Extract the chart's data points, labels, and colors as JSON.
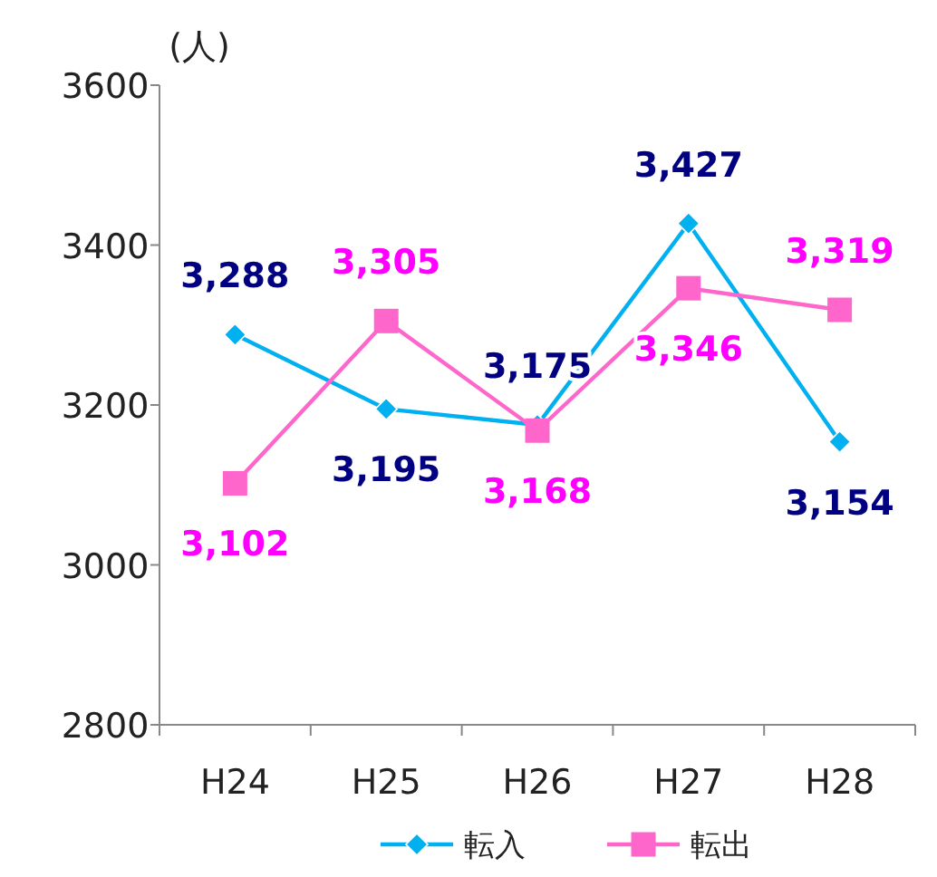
{
  "chart_data": {
    "type": "line",
    "ylabel": "(人)",
    "categories": [
      "H24",
      "H25",
      "H26",
      "H27",
      "H28"
    ],
    "series": [
      {
        "name": "転入",
        "color": "#00b0f0",
        "marker": "diamond",
        "values": [
          3288,
          3195,
          3175,
          3427,
          3154
        ],
        "value_labels": [
          "3,288",
          "3,195",
          "3,175",
          "3,427",
          "3,154"
        ]
      },
      {
        "name": "転出",
        "color": "#ff66cc",
        "marker": "square",
        "values": [
          3102,
          3305,
          3168,
          3346,
          3319
        ],
        "value_labels": [
          "3,102",
          "3,305",
          "3,168",
          "3,346",
          "3,319"
        ]
      }
    ],
    "ylim": [
      2800,
      3600
    ],
    "yticks": [
      2800,
      3000,
      3200,
      3400,
      3600
    ],
    "legend": "bottom",
    "grid": false
  }
}
